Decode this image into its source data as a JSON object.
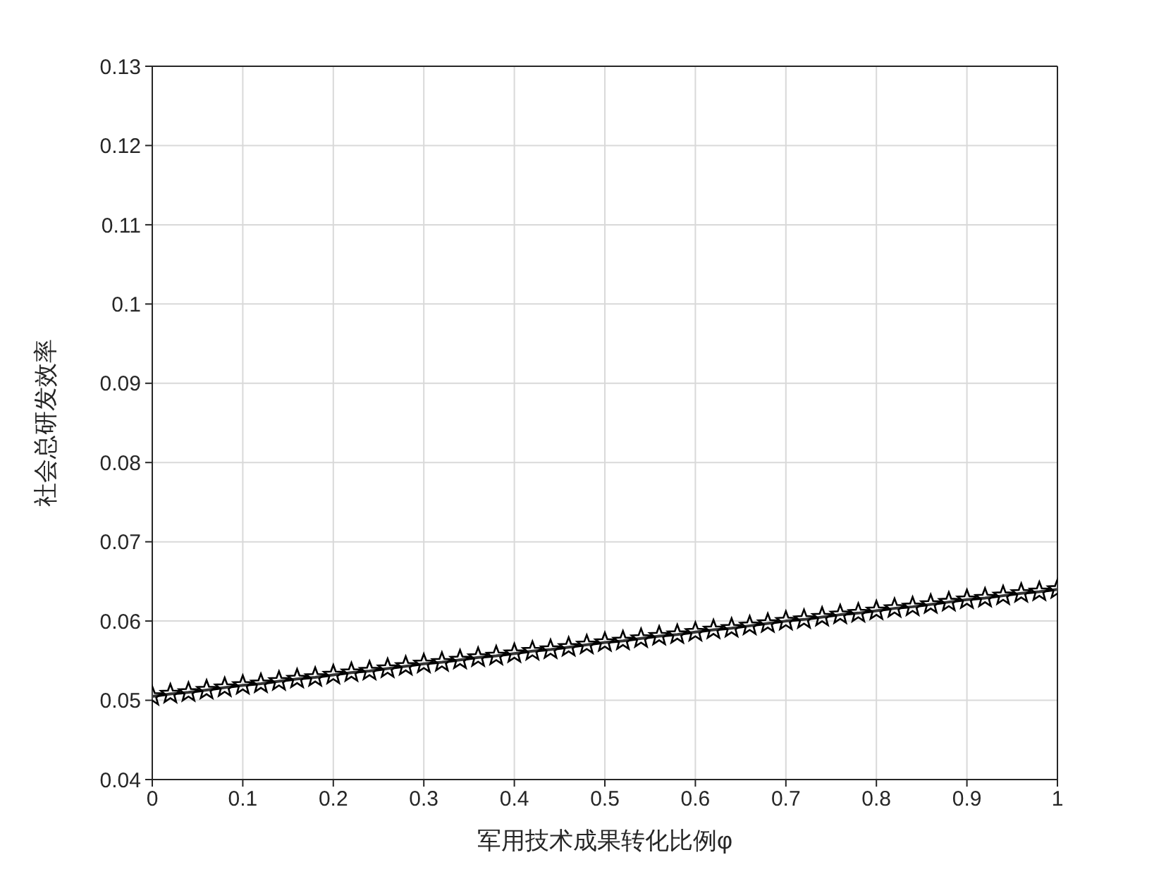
{
  "chart_data": {
    "type": "line",
    "xlabel": "军用技术成果转化比例φ",
    "ylabel": "社会总研发效率",
    "x": [
      0,
      0.02,
      0.04,
      0.06,
      0.08,
      0.1,
      0.12,
      0.14,
      0.16,
      0.18,
      0.2,
      0.22,
      0.24,
      0.26,
      0.28,
      0.3,
      0.32,
      0.34,
      0.36,
      0.38,
      0.4,
      0.42,
      0.44,
      0.46,
      0.48,
      0.5,
      0.52,
      0.54,
      0.56,
      0.58,
      0.6,
      0.62,
      0.64,
      0.66,
      0.68,
      0.7,
      0.72,
      0.74,
      0.76,
      0.78,
      0.8,
      0.82,
      0.84,
      0.86,
      0.88,
      0.9,
      0.92,
      0.94,
      0.96,
      0.98,
      1
    ],
    "series": [
      {
        "color": "#000000",
        "values": [
          0.0505,
          0.0508,
          0.051,
          0.0513,
          0.0516,
          0.0519,
          0.0521,
          0.0524,
          0.0527,
          0.0529,
          0.0532,
          0.0535,
          0.0537,
          0.054,
          0.0543,
          0.0546,
          0.0548,
          0.0551,
          0.0554,
          0.0556,
          0.0559,
          0.0562,
          0.0564,
          0.0567,
          0.057,
          0.0573,
          0.0575,
          0.0578,
          0.0581,
          0.0583,
          0.0586,
          0.0589,
          0.0591,
          0.0594,
          0.0597,
          0.06,
          0.0602,
          0.0605,
          0.0608,
          0.061,
          0.0613,
          0.0616,
          0.0618,
          0.0621,
          0.0624,
          0.0627,
          0.0629,
          0.0632,
          0.0635,
          0.0637,
          0.064
        ]
      }
    ],
    "xlim": [
      0,
      1
    ],
    "xticks": [
      0,
      0.1,
      0.2,
      0.3,
      0.4,
      0.5,
      0.6,
      0.7,
      0.8,
      0.9,
      1
    ],
    "ylim": [
      0.04,
      0.13
    ],
    "yticks": [
      0.04,
      0.05,
      0.06,
      0.07,
      0.08,
      0.09,
      0.1,
      0.11,
      0.12,
      0.13
    ],
    "grid": true,
    "marker": "star",
    "line_style": "solid",
    "legend": false
  }
}
